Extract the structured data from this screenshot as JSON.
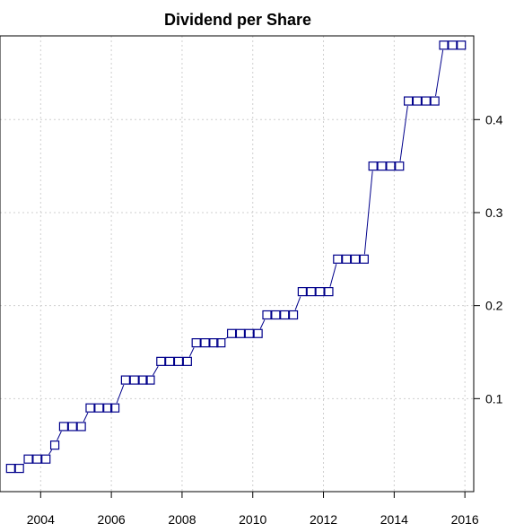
{
  "chart_data": {
    "type": "line",
    "title": "Dividend per Share",
    "xlabel": "",
    "ylabel": "",
    "xlim": [
      2002.85,
      2016.25
    ],
    "ylim": [
      0.0,
      0.49
    ],
    "x_ticks": [
      2004,
      2006,
      2008,
      2010,
      2012,
      2014,
      2016
    ],
    "x_tick_labels": [
      "2004",
      "2006",
      "2008",
      "2010",
      "2012",
      "2014",
      "2016"
    ],
    "y_ticks": [
      0.1,
      0.2,
      0.3,
      0.4
    ],
    "y_tick_labels": [
      "0.1",
      "0.2",
      "0.3",
      "0.4"
    ],
    "y_axis_side": "right",
    "grid": true,
    "series_color": "#00008b",
    "series": [
      {
        "marker": "square",
        "x": [
          2003.15,
          2003.4,
          2003.65,
          2003.9,
          2004.15,
          2004.4,
          2004.65,
          2004.9,
          2005.15,
          2005.4,
          2005.65,
          2005.9,
          2006.1,
          2006.4,
          2006.65,
          2006.9,
          2007.1,
          2007.4,
          2007.65,
          2007.9,
          2008.15,
          2008.4,
          2008.65,
          2008.9,
          2009.1,
          2009.4,
          2009.65,
          2009.9,
          2010.15,
          2010.4,
          2010.65,
          2010.9,
          2011.15,
          2011.4,
          2011.65,
          2011.9,
          2012.15,
          2012.4,
          2012.65,
          2012.9,
          2013.15,
          2013.4,
          2013.65,
          2013.9,
          2014.15,
          2014.4,
          2014.65,
          2014.9,
          2015.15,
          2015.4,
          2015.65,
          2015.9
        ],
        "y": [
          0.025,
          0.025,
          0.035,
          0.035,
          0.035,
          0.05,
          0.07,
          0.07,
          0.07,
          0.09,
          0.09,
          0.09,
          0.09,
          0.12,
          0.12,
          0.12,
          0.12,
          0.14,
          0.14,
          0.14,
          0.14,
          0.16,
          0.16,
          0.16,
          0.16,
          0.17,
          0.17,
          0.17,
          0.17,
          0.19,
          0.19,
          0.19,
          0.19,
          0.215,
          0.215,
          0.215,
          0.215,
          0.25,
          0.25,
          0.25,
          0.25,
          0.35,
          0.35,
          0.35,
          0.35,
          0.42,
          0.42,
          0.42,
          0.42,
          0.48,
          0.48,
          0.48
        ]
      }
    ]
  }
}
